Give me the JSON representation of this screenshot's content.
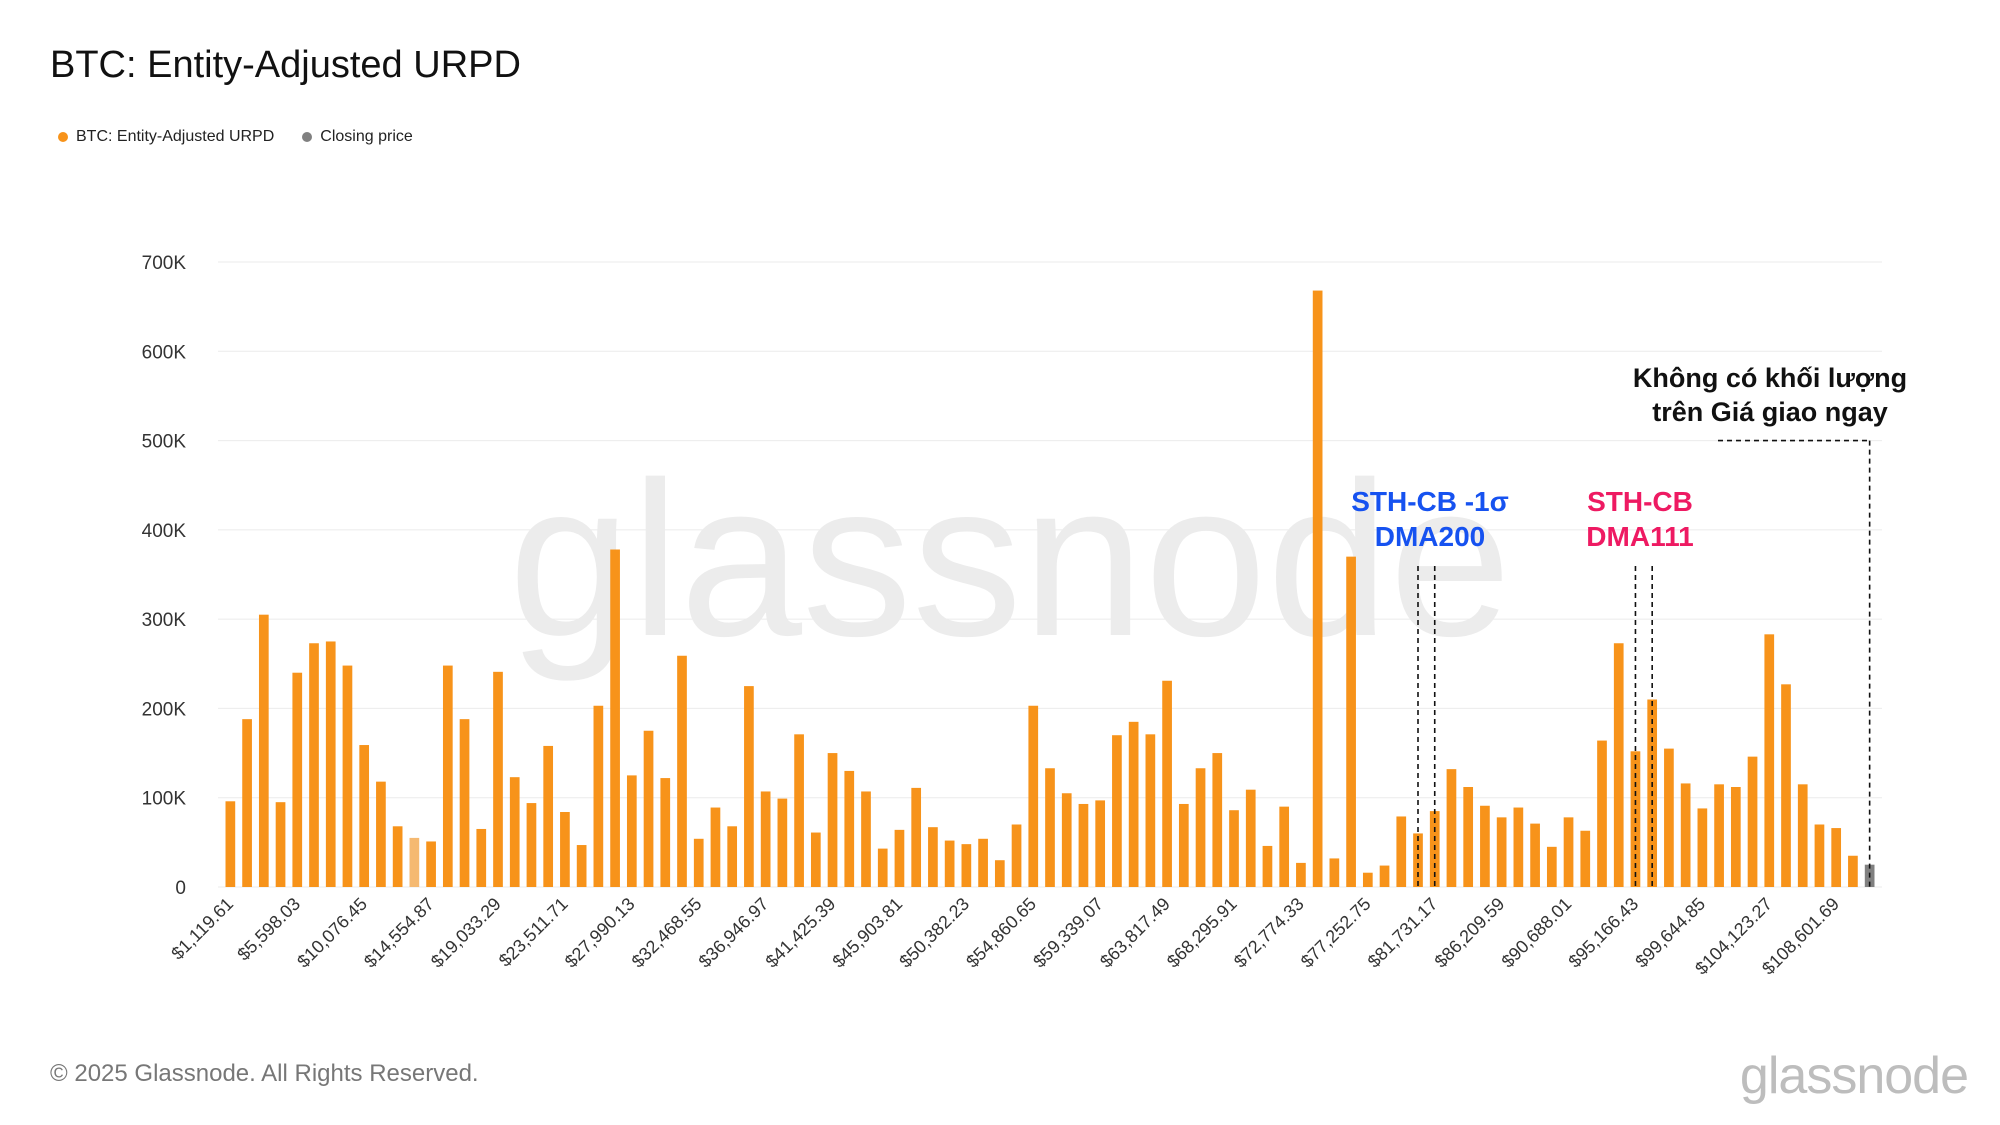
{
  "title": "BTC: Entity-Adjusted URPD",
  "legend": [
    {
      "label": "BTC: Entity-Adjusted URPD",
      "color": "#f7931a"
    },
    {
      "label": "Closing price",
      "color": "#808080"
    }
  ],
  "watermark": "glassnode",
  "footer": "© 2025 Glassnode. All Rights Reserved.",
  "brand": "glassnode",
  "annotations": {
    "dma200": {
      "text": "STH-CB -1σ\nDMA200",
      "color": "#1652f0"
    },
    "dma111": {
      "text": "STH-CB\nDMA111",
      "color": "#ee1a62"
    },
    "spot": {
      "text": "Không có khối lượng\ntrên Giá giao ngay",
      "color": "#111111"
    }
  },
  "chart_data": {
    "type": "bar",
    "title": "BTC: Entity-Adjusted URPD",
    "xlabel": "",
    "ylabel": "",
    "ylim": [
      0,
      700000
    ],
    "y_ticks": [
      "0",
      "100K",
      "200K",
      "300K",
      "400K",
      "500K",
      "600K",
      "700K"
    ],
    "x_tick_labels": [
      "$1,119.61",
      "$5,598.03",
      "$10,076.45",
      "$14,554.87",
      "$19,033.29",
      "$23,511.71",
      "$27,990.13",
      "$32,468.55",
      "$36,946.97",
      "$41,425.39",
      "$45,903.81",
      "$50,382.23",
      "$54,860.65",
      "$59,339.07",
      "$63,817.49",
      "$68,295.91",
      "$72,774.33",
      "$77,252.75",
      "$81,731.17",
      "$86,209.59",
      "$90,688.01",
      "$95,166.43",
      "$99,644.85",
      "$104,123.27",
      "$108,601.69"
    ],
    "grid": true,
    "legend_position": "top-left",
    "bar_color": "#f7931a",
    "highlight_color": "#f5b971",
    "closing_color": "#808080",
    "series": [
      {
        "name": "BTC: Entity-Adjusted URPD",
        "values": [
          96000,
          188000,
          305000,
          95000,
          240000,
          273000,
          275000,
          248000,
          159000,
          118000,
          68000,
          55000,
          51000,
          248000,
          188000,
          65000,
          241000,
          123000,
          94000,
          158000,
          84000,
          47000,
          203000,
          378000,
          125000,
          175000,
          122000,
          259000,
          54000,
          89000,
          68000,
          225000,
          107000,
          99000,
          171000,
          61000,
          150000,
          130000,
          107000,
          43000,
          64000,
          111000,
          67000,
          52000,
          48000,
          54000,
          30000,
          70000,
          203000,
          133000,
          105000,
          93000,
          97000,
          170000,
          185000,
          171000,
          231000,
          93000,
          133000,
          150000,
          86000,
          109000,
          46000,
          90000,
          27000,
          668000,
          32000,
          370000,
          16000,
          24000,
          79000,
          60000,
          85000,
          132000,
          112000,
          91000,
          78000,
          89000,
          71000,
          45000,
          78000,
          63000,
          164000,
          273000,
          152000,
          210000,
          155000,
          116000,
          88000,
          115000,
          112000,
          146000,
          283000,
          227000,
          115000,
          70000,
          66000,
          35000,
          25000
        ],
        "highlight_index": 11,
        "closing_price_index": 98
      }
    ],
    "markers": [
      {
        "name": "STH-CB -1σ",
        "bars": [
          71,
          72
        ]
      },
      {
        "name": "STH-CB DMA111",
        "bars": [
          84,
          85
        ]
      },
      {
        "name": "closing",
        "bars": [
          98
        ],
        "level": 500000
      }
    ]
  }
}
